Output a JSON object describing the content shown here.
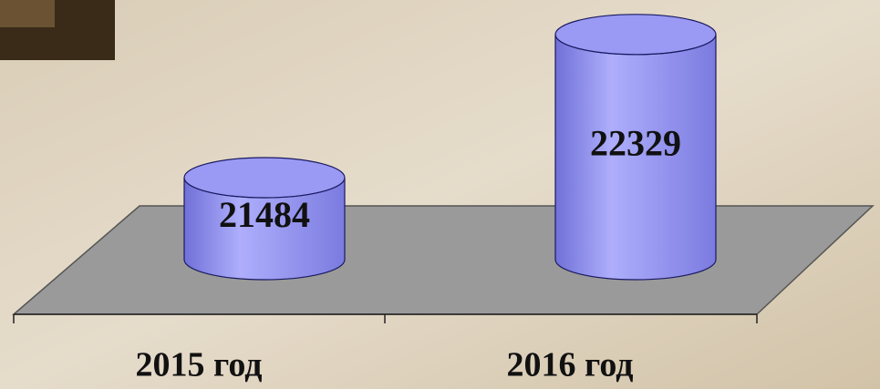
{
  "chart_data": {
    "type": "cylinder",
    "categories": [
      "2015 год",
      "2016 год"
    ],
    "values": [
      21484,
      22329
    ],
    "color": "#9a9af5",
    "ylim": [
      21000,
      22500
    ]
  }
}
